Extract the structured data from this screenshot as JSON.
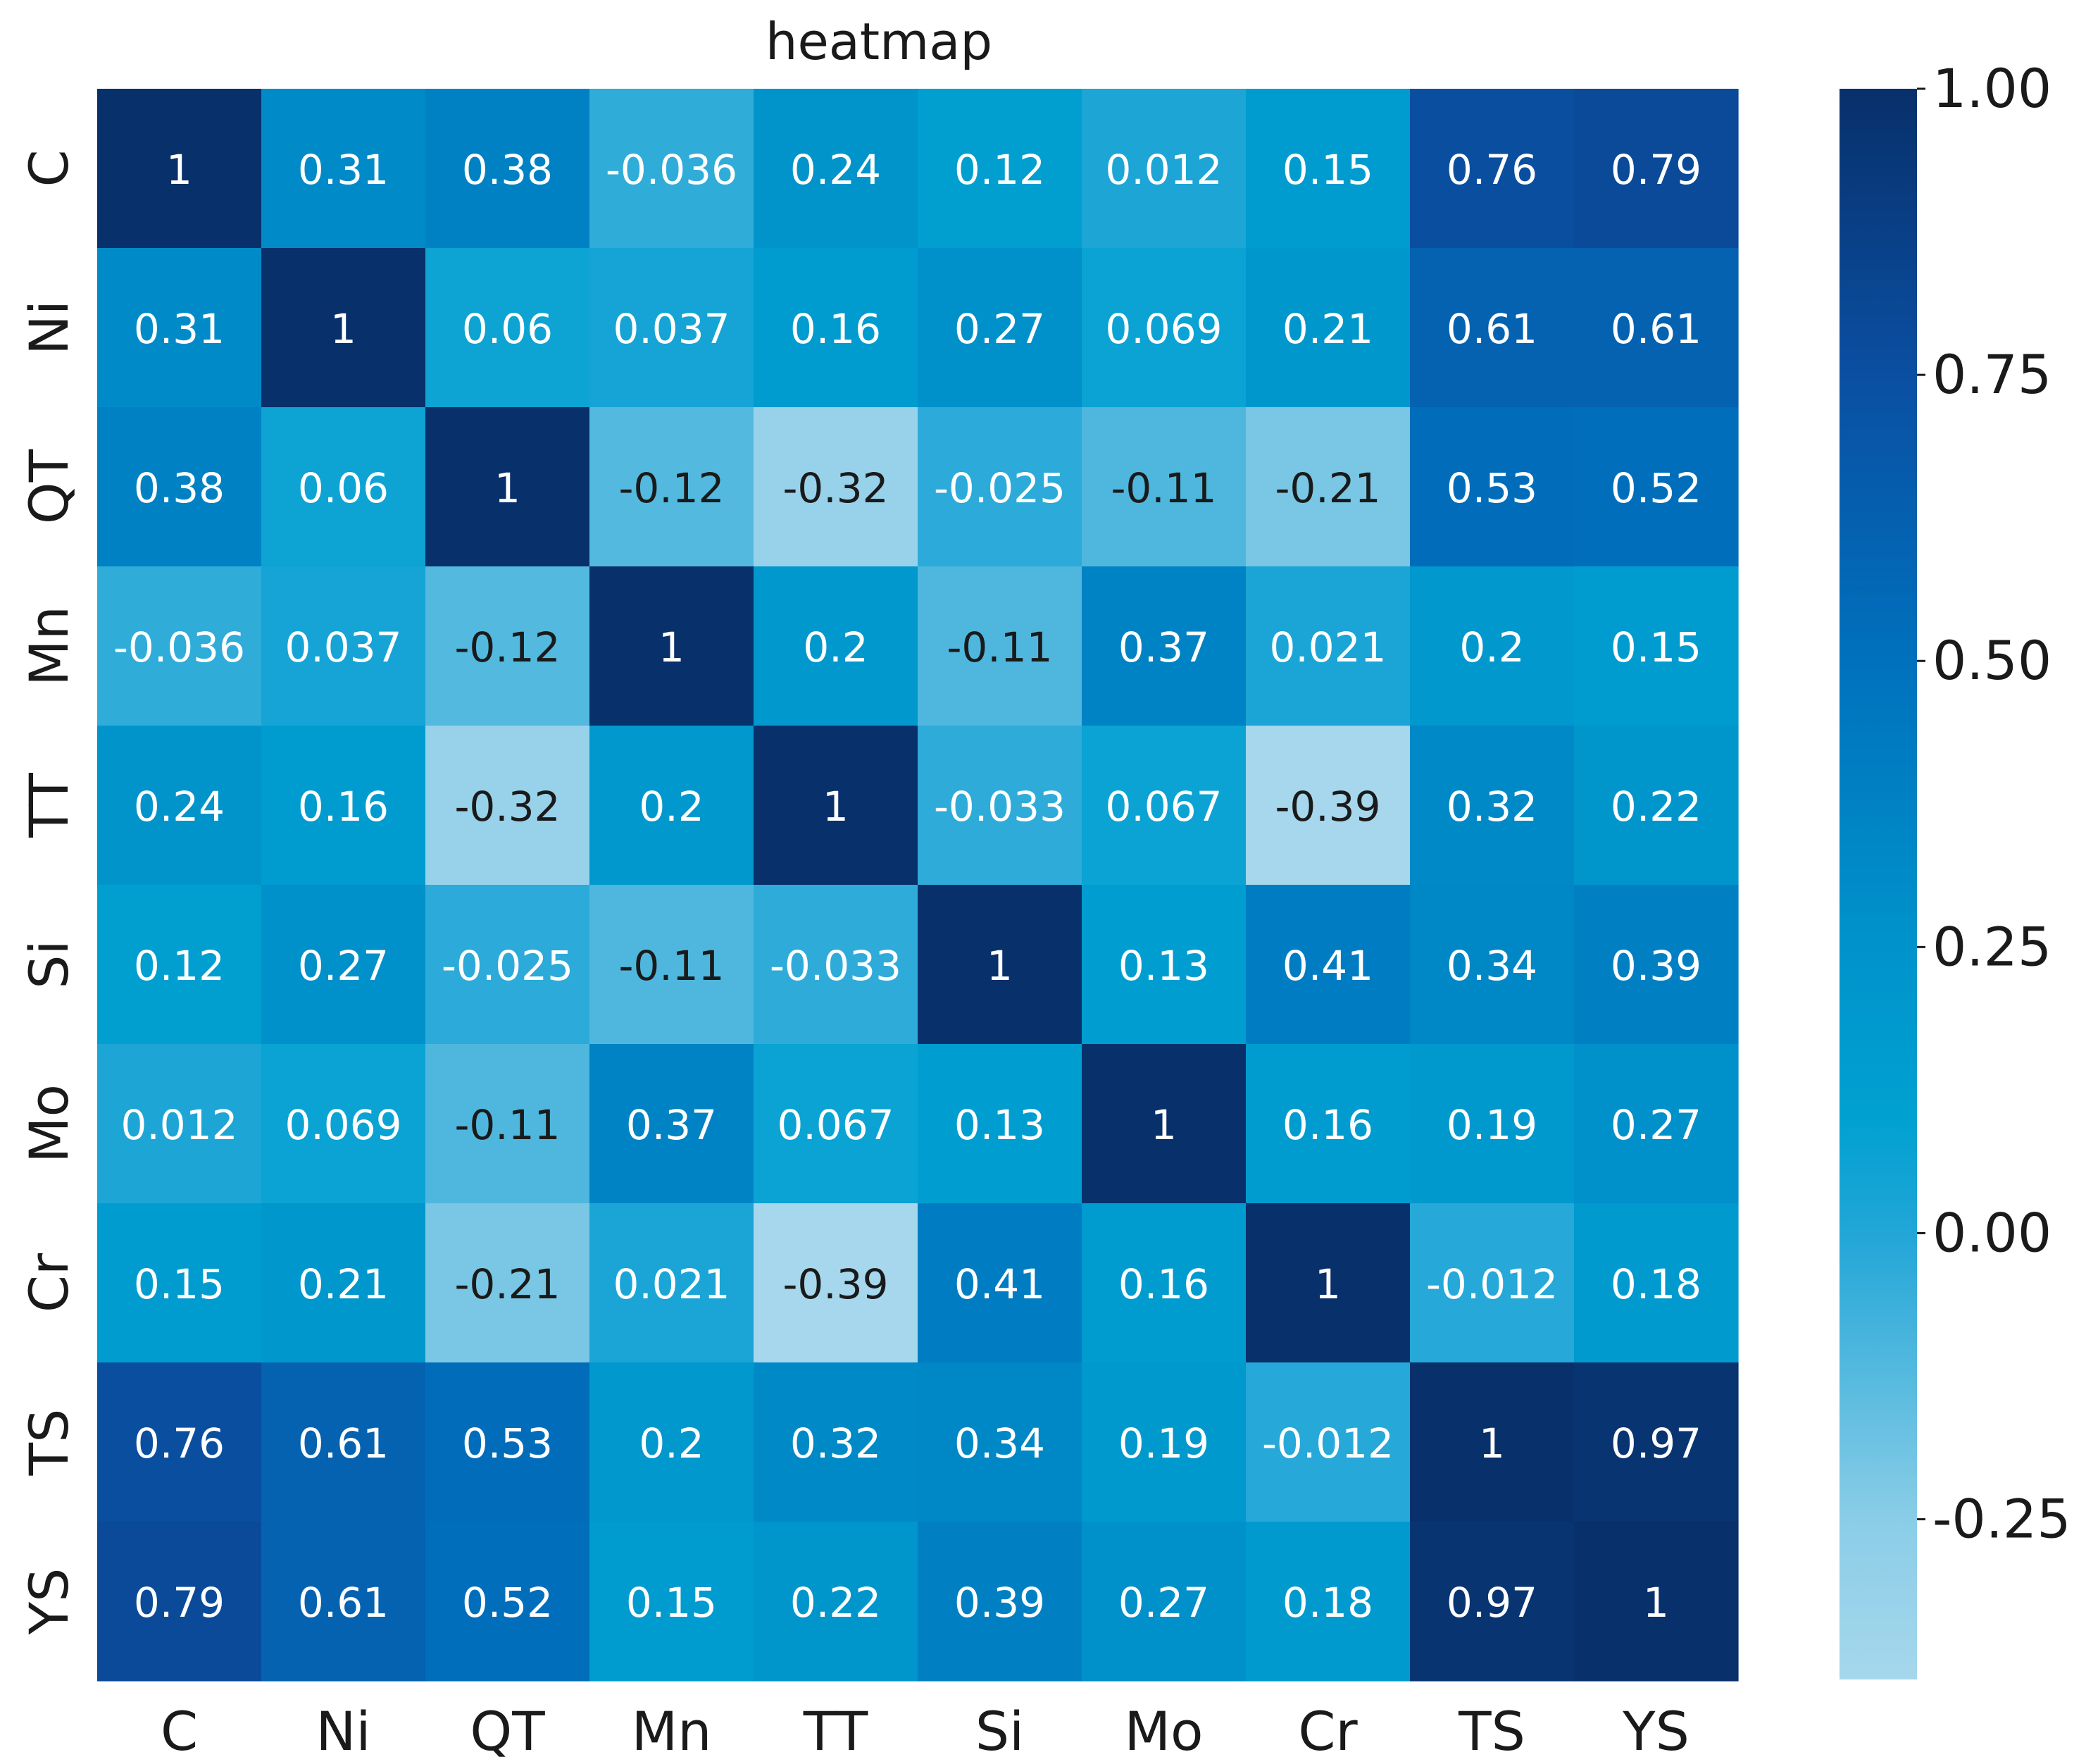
{
  "chart_data": {
    "type": "heatmap",
    "title": "heatmap",
    "xlabel": "",
    "ylabel": "",
    "x_labels": [
      "C",
      "Ni",
      "QT",
      "Mn",
      "TT",
      "Si",
      "Mo",
      "Cr",
      "TS",
      "YS"
    ],
    "y_labels": [
      "C",
      "Ni",
      "QT",
      "Mn",
      "TT",
      "Si",
      "Mo",
      "Cr",
      "TS",
      "YS"
    ],
    "matrix": [
      [
        "1",
        "0.31",
        "0.38",
        "-0.036",
        "0.24",
        "0.12",
        "0.012",
        "0.15",
        "0.76",
        "0.79"
      ],
      [
        "0.31",
        "1",
        "0.06",
        "0.037",
        "0.16",
        "0.27",
        "0.069",
        "0.21",
        "0.61",
        "0.61"
      ],
      [
        "0.38",
        "0.06",
        "1",
        "-0.12",
        "-0.32",
        "-0.025",
        "-0.11",
        "-0.21",
        "0.53",
        "0.52"
      ],
      [
        "-0.036",
        "0.037",
        "-0.12",
        "1",
        "0.2",
        "-0.11",
        "0.37",
        "0.021",
        "0.2",
        "0.15"
      ],
      [
        "0.24",
        "0.16",
        "-0.32",
        "0.2",
        "1",
        "-0.033",
        "0.067",
        "-0.39",
        "0.32",
        "0.22"
      ],
      [
        "0.12",
        "0.27",
        "-0.025",
        "-0.11",
        "-0.033",
        "1",
        "0.13",
        "0.41",
        "0.34",
        "0.39"
      ],
      [
        "0.012",
        "0.069",
        "-0.11",
        "0.37",
        "0.067",
        "0.13",
        "1",
        "0.16",
        "0.19",
        "0.27"
      ],
      [
        "0.15",
        "0.21",
        "-0.21",
        "0.021",
        "-0.39",
        "0.41",
        "0.16",
        "1",
        "-0.012",
        "0.18"
      ],
      [
        "0.76",
        "0.61",
        "0.53",
        "0.2",
        "0.32",
        "0.34",
        "0.19",
        "-0.012",
        "1",
        "0.97"
      ],
      [
        "0.79",
        "0.61",
        "0.52",
        "0.15",
        "0.22",
        "0.39",
        "0.27",
        "0.18",
        "0.97",
        "1"
      ]
    ],
    "colorbar": {
      "range": [
        -0.39,
        1.0
      ],
      "ticks": [
        -0.25,
        0.0,
        0.25,
        0.5,
        0.75,
        1.0
      ],
      "tick_labels": [
        "-0.25",
        "0.00",
        "0.25",
        "0.50",
        "0.75",
        "1.00"
      ],
      "colormap_stops": [
        {
          "value": -0.39,
          "color": "#a6d7ec"
        },
        {
          "value": -0.25,
          "color": "#8acde7"
        },
        {
          "value": 0.0,
          "color": "#21a6d7"
        },
        {
          "value": 0.1,
          "color": "#00a1d1"
        },
        {
          "value": 0.25,
          "color": "#0093cb"
        },
        {
          "value": 0.5,
          "color": "#0071bd"
        },
        {
          "value": 0.75,
          "color": "#0a4fa2"
        },
        {
          "value": 1.0,
          "color": "#08306b"
        }
      ]
    },
    "annotation_colors": {
      "dark": "#1a1a1a",
      "light": "#ffffff"
    },
    "annotation_light_threshold": -0.05,
    "grid": false
  }
}
